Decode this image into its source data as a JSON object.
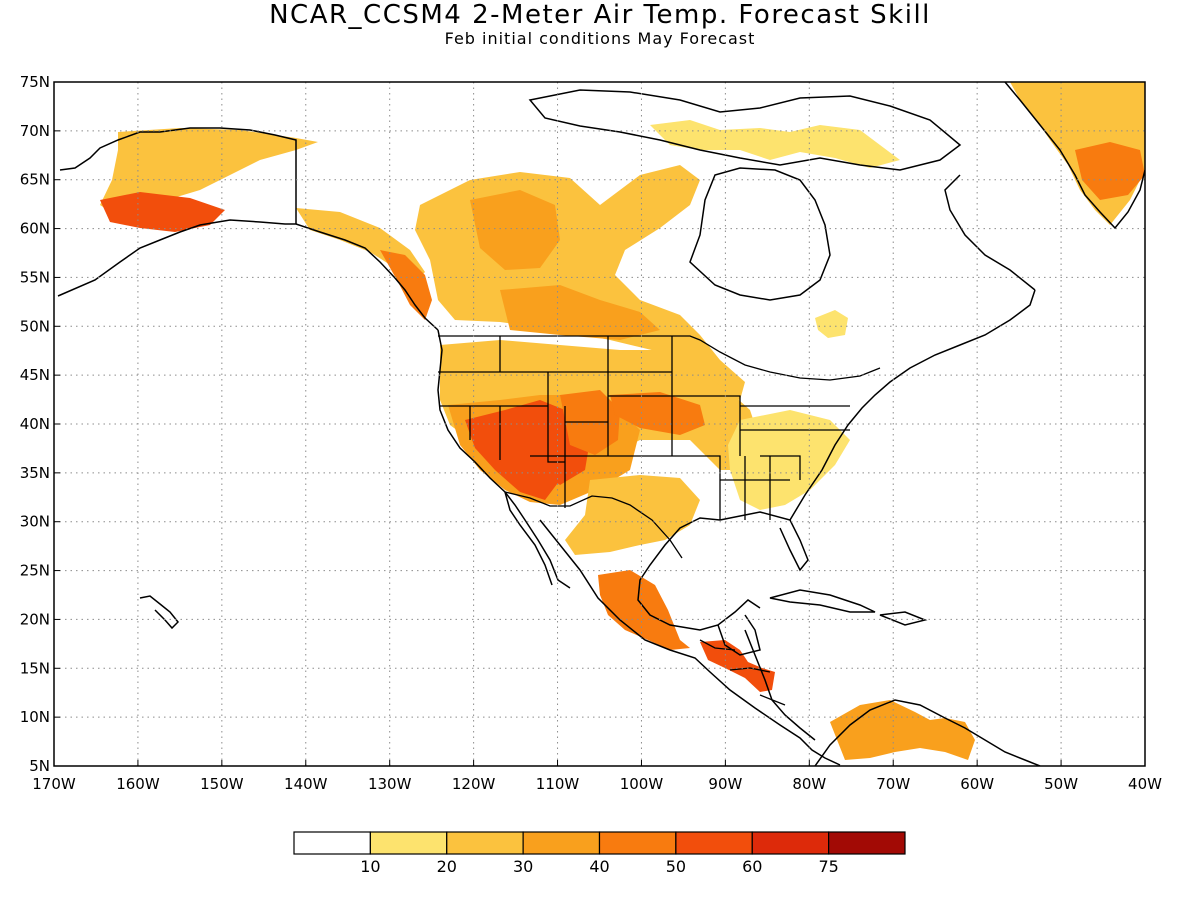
{
  "title": "NCAR_CCSM4 2-Meter Air Temp. Forecast Skill",
  "subtitle": "Feb initial conditions  May Forecast",
  "map": {
    "lon_range": [
      -170,
      -40
    ],
    "lat_range": [
      5,
      75
    ],
    "grid": "dotted",
    "lat_labels": [
      "75N",
      "70N",
      "65N",
      "60N",
      "55N",
      "50N",
      "45N",
      "40N",
      "35N",
      "30N",
      "25N",
      "20N",
      "15N",
      "10N",
      "5N"
    ],
    "lon_labels": [
      "170W",
      "160W",
      "150W",
      "140W",
      "130W",
      "120W",
      "110W",
      "100W",
      "90W",
      "80W",
      "70W",
      "60W",
      "50W",
      "40W"
    ]
  },
  "colorbar": {
    "colors": [
      "#ffffff",
      "#fde36e",
      "#fbc23e",
      "#f9a01d",
      "#f87b0f",
      "#f24e0c",
      "#dd2a0a",
      "#a20a05"
    ],
    "labels": [
      "10",
      "20",
      "30",
      "40",
      "50",
      "60",
      "75"
    ]
  },
  "skill_regions": [
    {
      "name": "alaska",
      "level": 2
    },
    {
      "name": "alaska-southwest",
      "level": 5
    },
    {
      "name": "yukon-coast",
      "level": 2
    },
    {
      "name": "western-canada",
      "level": 2
    },
    {
      "name": "western-canada-core",
      "level": 3
    },
    {
      "name": "bc-coast",
      "level": 4
    },
    {
      "name": "prairies",
      "level": 3
    },
    {
      "name": "western-us",
      "level": 2
    },
    {
      "name": "southwest-us",
      "level": 3
    },
    {
      "name": "arizona-core",
      "level": 5
    },
    {
      "name": "utah-nevada",
      "level": 5
    },
    {
      "name": "colorado",
      "level": 4
    },
    {
      "name": "nebraska",
      "level": 4
    },
    {
      "name": "texas-mexico",
      "level": 2
    },
    {
      "name": "southeast-us",
      "level": 1
    },
    {
      "name": "central-mexico",
      "level": 4
    },
    {
      "name": "central-america",
      "level": 5
    },
    {
      "name": "caribbean-south-america",
      "level": 3
    },
    {
      "name": "greenland",
      "level": 2
    },
    {
      "name": "greenland-core",
      "level": 4
    },
    {
      "name": "arctic-islands",
      "level": 1
    },
    {
      "name": "hudson-bay-patch",
      "level": 1
    }
  ]
}
